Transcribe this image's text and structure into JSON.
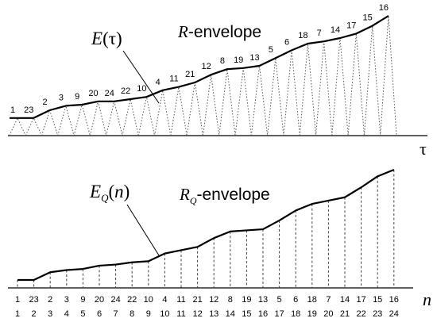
{
  "top_panel": {
    "title_prefix": "R",
    "title_suffix": "-envelope",
    "curve_label": {
      "symbol": "E",
      "open": "(",
      "arg": "τ",
      "close": ")"
    },
    "axis_label": "τ",
    "peaks": [
      {
        "label": "1",
        "level": 0.08
      },
      {
        "label": "23",
        "level": 0.08
      },
      {
        "label": "2",
        "level": 0.15
      },
      {
        "label": "3",
        "level": 0.19
      },
      {
        "label": "9",
        "level": 0.2
      },
      {
        "label": "20",
        "level": 0.23
      },
      {
        "label": "24",
        "level": 0.23
      },
      {
        "label": "22",
        "level": 0.25
      },
      {
        "label": "10",
        "level": 0.27
      },
      {
        "label": "4",
        "level": 0.33
      },
      {
        "label": "11",
        "level": 0.36
      },
      {
        "label": "21",
        "level": 0.4
      },
      {
        "label": "12",
        "level": 0.47
      },
      {
        "label": "8",
        "level": 0.52
      },
      {
        "label": "19",
        "level": 0.53
      },
      {
        "label": "13",
        "level": 0.55
      },
      {
        "label": "5",
        "level": 0.62
      },
      {
        "label": "6",
        "level": 0.69
      },
      {
        "label": "18",
        "level": 0.75
      },
      {
        "label": "7",
        "level": 0.77
      },
      {
        "label": "14",
        "level": 0.8
      },
      {
        "label": "17",
        "level": 0.84
      },
      {
        "label": "15",
        "level": 0.91
      },
      {
        "label": "16",
        "level": 1.0
      }
    ]
  },
  "bottom_panel": {
    "title_prefix": "R",
    "title_subscript": "Q",
    "title_suffix": "-envelope",
    "curve_label": {
      "symbol": "E",
      "subscript": "Q",
      "open": "(",
      "arg": "n",
      "close": ")"
    },
    "axis_label": "n",
    "order_labels": [
      "1",
      "23",
      "2",
      "3",
      "9",
      "20",
      "24",
      "22",
      "10",
      "4",
      "11",
      "21",
      "12",
      "8",
      "19",
      "13",
      "5",
      "6",
      "18",
      "7",
      "14",
      "17",
      "15",
      "16"
    ],
    "index_labels": [
      "1",
      "2",
      "3",
      "4",
      "5",
      "6",
      "7",
      "8",
      "9",
      "10",
      "11",
      "12",
      "13",
      "14",
      "15",
      "16",
      "17",
      "18",
      "19",
      "20",
      "21",
      "22",
      "23",
      "24"
    ],
    "levels": [
      0.0,
      0.0,
      0.07,
      0.09,
      0.1,
      0.13,
      0.14,
      0.16,
      0.17,
      0.24,
      0.27,
      0.3,
      0.38,
      0.44,
      0.45,
      0.46,
      0.54,
      0.63,
      0.69,
      0.72,
      0.75,
      0.84,
      0.94,
      1.0
    ]
  }
}
